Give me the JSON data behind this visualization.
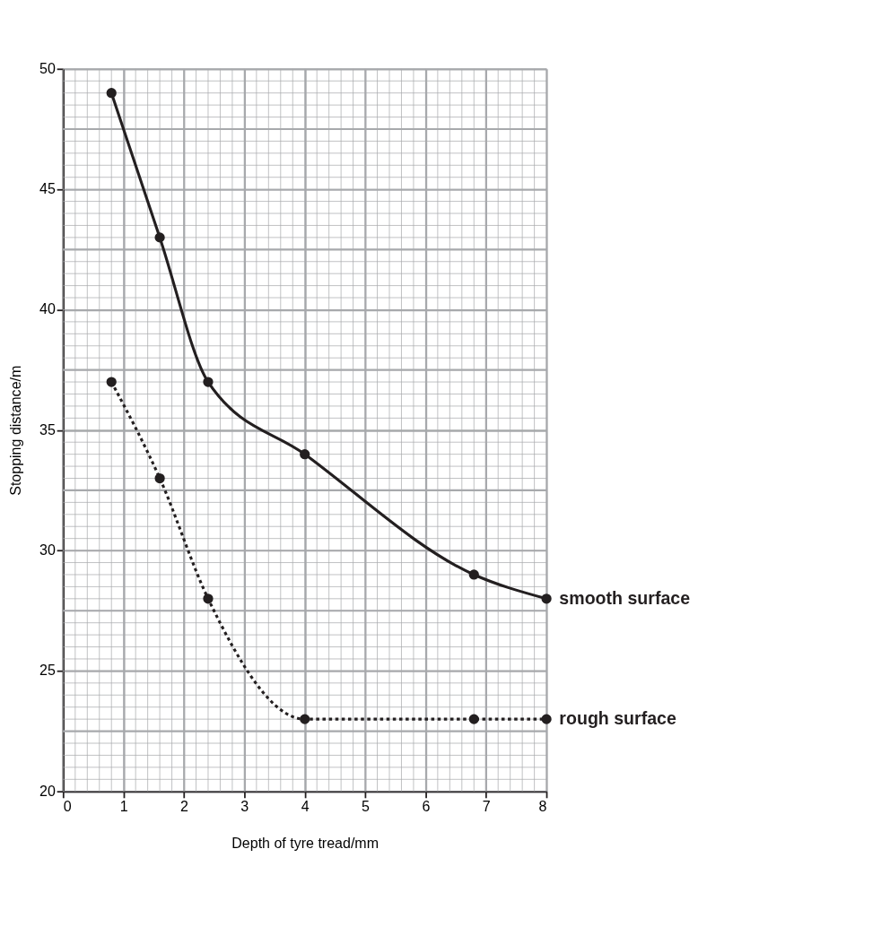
{
  "chart_data": {
    "type": "line",
    "xlabel": "Depth of tyre tread/mm",
    "ylabel": "Stopping distance/m",
    "xlim": [
      0,
      8
    ],
    "ylim": [
      20,
      50
    ],
    "xticks": [
      0,
      1,
      2,
      3,
      4,
      5,
      6,
      7,
      8
    ],
    "yticks": [
      20,
      25,
      30,
      35,
      40,
      45,
      50
    ],
    "grid": true,
    "marker": "circle",
    "series": [
      {
        "name": "smooth surface",
        "color": "#231f20",
        "line_style": "solid",
        "x": [
          0.8,
          1.6,
          2.4,
          4,
          6.8,
          8
        ],
        "values": [
          49,
          43,
          37,
          34,
          29,
          28
        ]
      },
      {
        "name": "rough surface",
        "color": "#231f20",
        "line_style": "dotted",
        "x": [
          0.8,
          1.6,
          2.4,
          4,
          6.8,
          8
        ],
        "values": [
          37,
          33,
          28,
          23,
          23,
          23
        ]
      }
    ]
  }
}
